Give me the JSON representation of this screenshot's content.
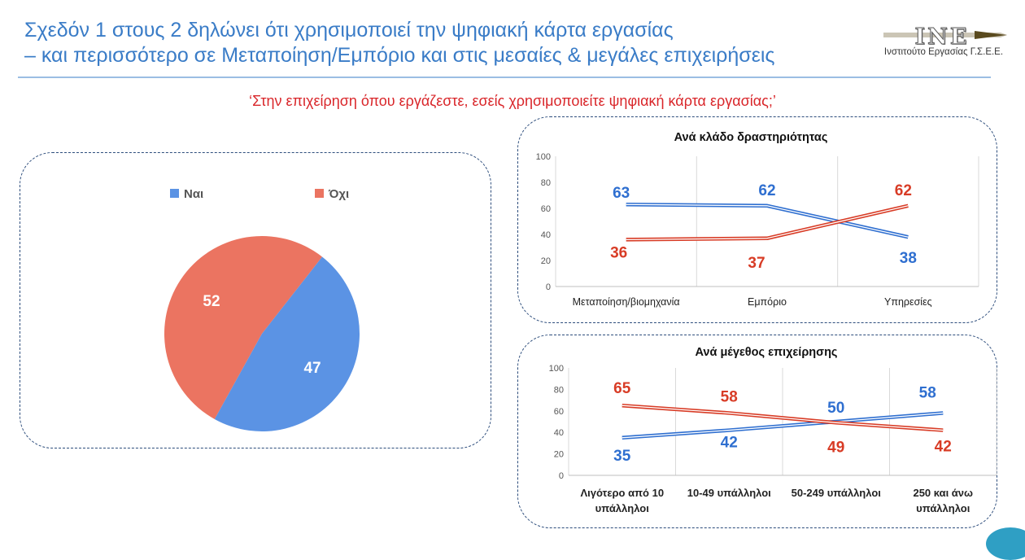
{
  "title": {
    "line1": "Σχεδόν 1 στους 2 δηλώνει ότι χρησιμοποιεί την ψηφιακή κάρτα εργασίας",
    "line2": "– και περισσότερο σε Μεταποίηση/Εμπόριο και στις μεσαίες & μεγάλες επιχειρήσεις"
  },
  "logo": {
    "text": "INE",
    "subtitle": "Ινστιτούτο Εργασίας Γ.Σ.Ε.Ε."
  },
  "question": "‘Στην επιχείρηση όπου εργάζεστε, εσείς χρησιμοποιείτε ψηφιακή κάρτα εργασίας;’",
  "colors": {
    "yes": "#5b93e4",
    "no": "#eb7461",
    "yes_line": "#2f6fd0",
    "no_line": "#d83c26"
  },
  "chart_data": [
    {
      "type": "pie",
      "title": "",
      "legend": "top",
      "categories": [
        "Ναι",
        "Όχι"
      ],
      "values": [
        47,
        52
      ],
      "data_labels": [
        "47",
        "52"
      ]
    },
    {
      "type": "line",
      "title": "Ανά κλάδο δραστηριότητας",
      "categories": [
        "Μεταποίηση/βιομηχανία",
        "Εμπόριο",
        "Υπηρεσίες"
      ],
      "series": [
        {
          "name": "Ναι",
          "values": [
            63,
            62,
            38
          ]
        },
        {
          "name": "Όχι",
          "values": [
            36,
            37,
            62
          ]
        }
      ],
      "yticks": [
        "0",
        "20",
        "40",
        "60",
        "80",
        "100"
      ],
      "ylim": [
        0,
        100
      ],
      "grid": "vertical",
      "legend": "none"
    },
    {
      "type": "line",
      "title": "Ανά μέγεθος επιχείρησης",
      "categories": [
        [
          "Λιγότερο από 10",
          "υπάλληλοι"
        ],
        [
          "10-49 υπάλληλοι"
        ],
        [
          "50-249 υπάλληλοι"
        ],
        [
          "250 και άνω",
          "υπάλληλοι"
        ]
      ],
      "series": [
        {
          "name": "Ναι",
          "values": [
            35,
            42,
            50,
            58
          ]
        },
        {
          "name": "Όχι",
          "values": [
            65,
            58,
            49,
            42
          ]
        }
      ],
      "yticks": [
        "0",
        "20",
        "40",
        "60",
        "80",
        "100"
      ],
      "ylim": [
        0,
        100
      ],
      "grid": "vertical",
      "legend": "none"
    }
  ]
}
